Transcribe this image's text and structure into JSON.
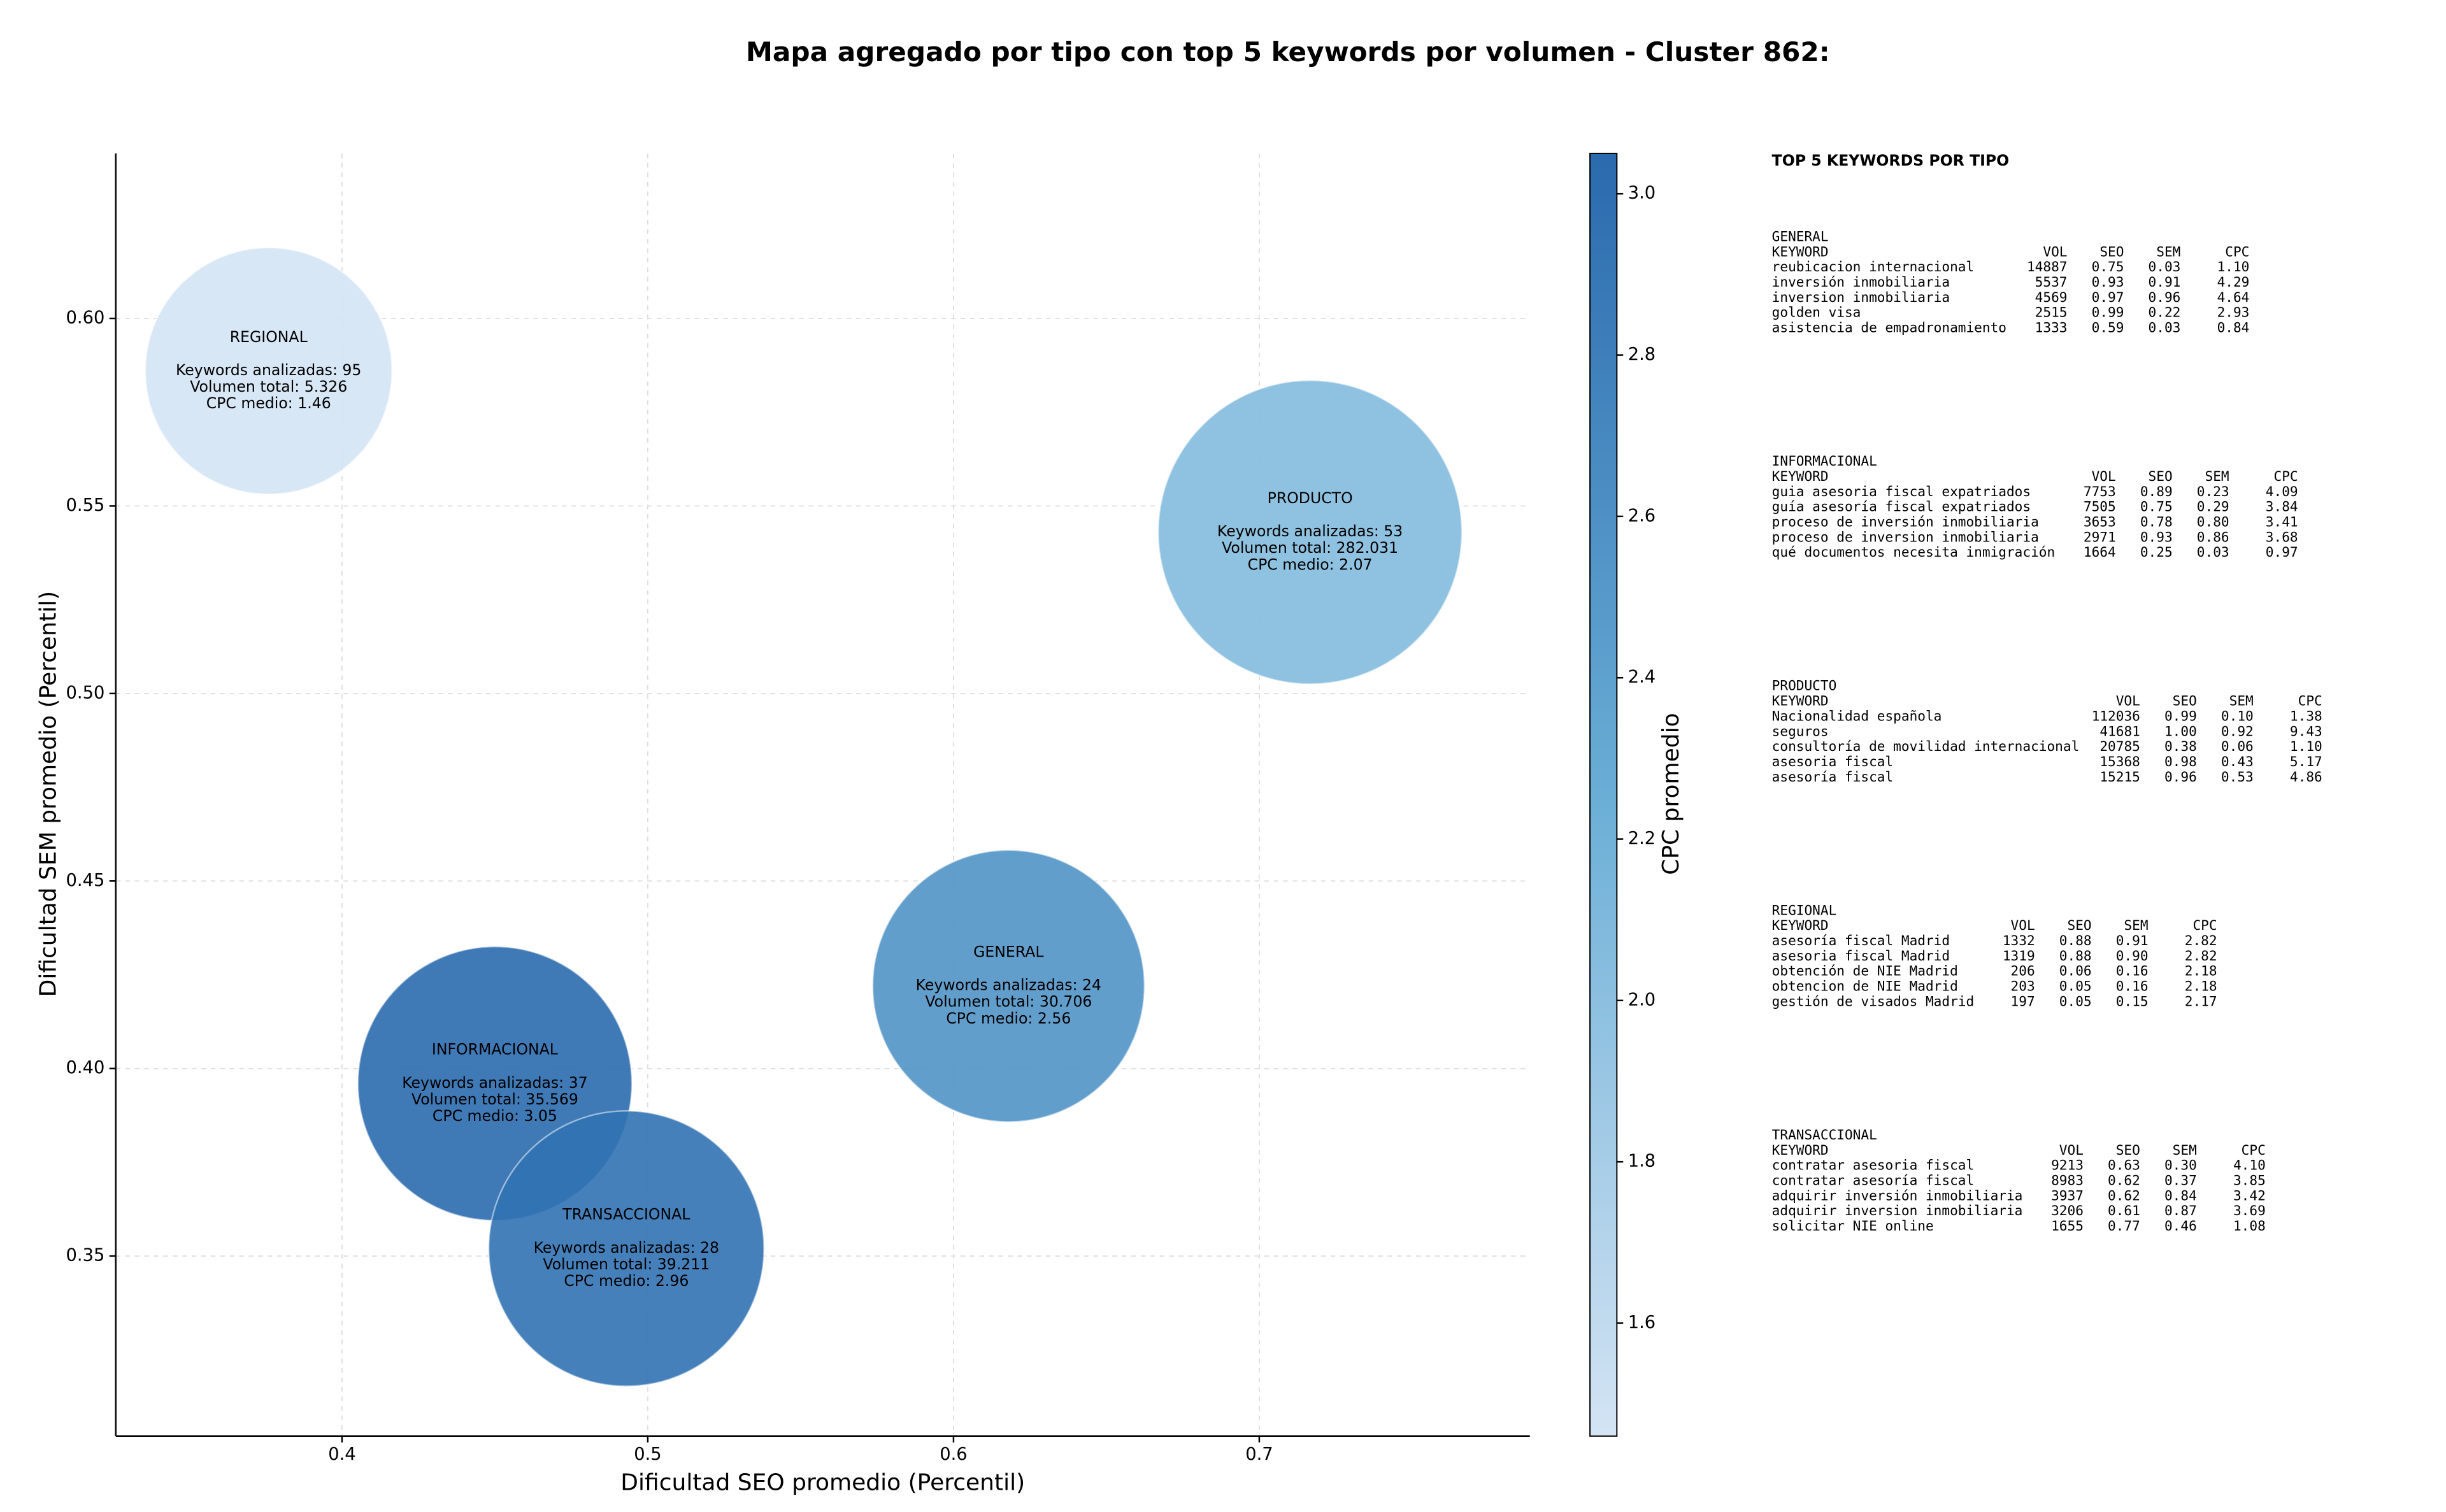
{
  "chart_data": {
    "type": "bubble",
    "title": "Mapa agregado por tipo con top 5 keywords por volumen - Cluster 862:",
    "x_label": "Dificultad SEO promedio (Percentil)",
    "y_label": "Dificultad SEM promedio (Percentil)",
    "colorbar_label": "CPC promedio",
    "xlim": [
      0.326,
      0.7885
    ],
    "ylim": [
      0.302,
      0.644
    ],
    "xticks": [
      0.4,
      0.5,
      0.6,
      0.7
    ],
    "yticks": [
      0.35,
      {
        "value": 0.4,
        "label": "0.40"
      },
      0.45,
      {
        "value": 0.5,
        "label": "0.50"
      },
      0.55,
      {
        "value": 0.6,
        "label": "0.60"
      }
    ],
    "clim": [
      1.46,
      3.05
    ],
    "cticks": [
      1.6,
      1.8,
      {
        "value": 2,
        "label": "2.0"
      },
      2.2,
      2.4,
      2.6,
      2.8,
      {
        "value": 3,
        "label": "3.0"
      }
    ],
    "colormap": [
      "#d4e4f4",
      "#6aaed6",
      "#2a6aae"
    ],
    "grid": true,
    "series": [
      {
        "name": "REGIONAL",
        "x": 0.376,
        "y": 0.586,
        "keywords_label": "Keywords analizadas: 95",
        "volume": 5326,
        "volume_label": "Volumen total: 5.326",
        "cpc": 1.46,
        "cpc_label": "CPC medio: 1.46"
      },
      {
        "name": "PRODUCTO",
        "x": 0.7166,
        "y": 0.543,
        "keywords_label": "Keywords analizadas: 53",
        "volume": 282031,
        "volume_label": "Volumen total: 282.031",
        "cpc": 2.07,
        "cpc_label": "CPC medio: 2.07"
      },
      {
        "name": "GENERAL",
        "x": 0.618,
        "y": 0.422,
        "keywords_label": "Keywords analizadas: 24",
        "volume": 30706,
        "volume_label": "Volumen total: 30.706",
        "cpc": 2.56,
        "cpc_label": "CPC medio: 2.56"
      },
      {
        "name": "INFORMACIONAL",
        "x": 0.45,
        "y": 0.396,
        "keywords_label": "Keywords analizadas: 37",
        "volume": 35569,
        "volume_label": "Volumen total: 35.569",
        "cpc": 3.05,
        "cpc_label": "CPC medio: 3.05"
      },
      {
        "name": "TRANSACCIONAL",
        "x": 0.493,
        "y": 0.352,
        "keywords_label": "Keywords analizadas: 28",
        "volume": 39211,
        "volume_label": "Volumen total: 39.211",
        "cpc": 2.96,
        "cpc_label": "CPC medio: 2.96"
      }
    ]
  },
  "keyword_tables": {
    "title": "TOP 5 KEYWORDS POR TIPO",
    "header": [
      "KEYWORD",
      "VOL",
      "SEO",
      "SEM",
      "CPC"
    ],
    "sections": [
      {
        "name": "GENERAL",
        "rows": [
          [
            "reubicacion internacional",
            "14887",
            "0.75",
            "0.03",
            "1.10"
          ],
          [
            "inversión inmobiliaria",
            "5537",
            "0.93",
            "0.91",
            "4.29"
          ],
          [
            "inversion inmobiliaria",
            "4569",
            "0.97",
            "0.96",
            "4.64"
          ],
          [
            "golden visa",
            "2515",
            "0.99",
            "0.22",
            "2.93"
          ],
          [
            "asistencia de empadronamiento",
            "1333",
            "0.59",
            "0.03",
            "0.84"
          ]
        ]
      },
      {
        "name": "INFORMACIONAL",
        "rows": [
          [
            "guia asesoria fiscal expatriados",
            "7753",
            "0.89",
            "0.23",
            "4.09"
          ],
          [
            "guía asesoría fiscal expatriados",
            "7505",
            "0.75",
            "0.29",
            "3.84"
          ],
          [
            "proceso de inversión inmobiliaria",
            "3653",
            "0.78",
            "0.80",
            "3.41"
          ],
          [
            "proceso de inversion inmobiliaria",
            "2971",
            "0.93",
            "0.86",
            "3.68"
          ],
          [
            "qué documentos necesita inmigración",
            "1664",
            "0.25",
            "0.03",
            "0.97"
          ]
        ]
      },
      {
        "name": "PRODUCTO",
        "rows": [
          [
            "Nacionalidad española",
            "112036",
            "0.99",
            "0.10",
            "1.38"
          ],
          [
            "seguros",
            "41681",
            "1.00",
            "0.92",
            "9.43"
          ],
          [
            "consultoría de movilidad internacional",
            "20785",
            "0.38",
            "0.06",
            "1.10"
          ],
          [
            "asesoria fiscal",
            "15368",
            "0.98",
            "0.43",
            "5.17"
          ],
          [
            "asesoría fiscal",
            "15215",
            "0.96",
            "0.53",
            "4.86"
          ]
        ]
      },
      {
        "name": "REGIONAL",
        "rows": [
          [
            "asesoría fiscal Madrid",
            "1332",
            "0.88",
            "0.91",
            "2.82"
          ],
          [
            "asesoria fiscal Madrid",
            "1319",
            "0.88",
            "0.90",
            "2.82"
          ],
          [
            "obtención de NIE Madrid",
            "206",
            "0.06",
            "0.16",
            "2.18"
          ],
          [
            "obtencion de NIE Madrid",
            "203",
            "0.05",
            "0.16",
            "2.18"
          ],
          [
            "gestión de visados Madrid",
            "197",
            "0.05",
            "0.15",
            "2.17"
          ]
        ]
      },
      {
        "name": "TRANSACCIONAL",
        "rows": [
          [
            "contratar asesoria fiscal",
            "9213",
            "0.63",
            "0.30",
            "4.10"
          ],
          [
            "contratar asesoría fiscal",
            "8983",
            "0.62",
            "0.37",
            "3.85"
          ],
          [
            "adquirir inversión inmobiliaria",
            "3937",
            "0.62",
            "0.84",
            "3.42"
          ],
          [
            "adquirir inversion inmobiliaria",
            "3206",
            "0.61",
            "0.87",
            "3.69"
          ],
          [
            "solicitar NIE online",
            "1655",
            "0.77",
            "0.46",
            "1.08"
          ]
        ]
      }
    ]
  }
}
